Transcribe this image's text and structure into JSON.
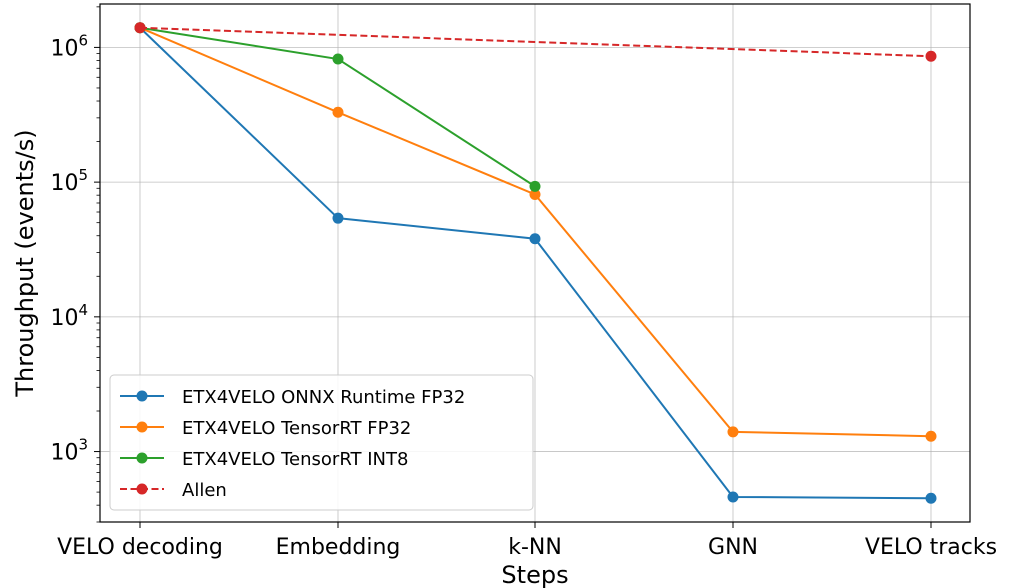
{
  "chart_data": {
    "type": "line",
    "categories": [
      "VELO decoding",
      "Embedding",
      "k-NN",
      "GNN",
      "VELO tracks"
    ],
    "xlabel": "Steps",
    "ylabel": "Throughput (events/s)",
    "yscale": "log",
    "ylim": [
      300,
      2100000
    ],
    "yticks": [
      {
        "value": 1000,
        "base": "10",
        "exp": "3"
      },
      {
        "value": 10000,
        "base": "10",
        "exp": "4"
      },
      {
        "value": 100000,
        "base": "10",
        "exp": "5"
      },
      {
        "value": 1000000,
        "base": "10",
        "exp": "6"
      }
    ],
    "grid": true,
    "legend_position": "lower-left",
    "series": [
      {
        "name": "ETX4VELO ONNX Runtime FP32",
        "color": "#1f77b4",
        "dash": "solid",
        "values": [
          1400000,
          54000,
          38000,
          460,
          450
        ]
      },
      {
        "name": "ETX4VELO TensorRT FP32",
        "color": "#ff7f0e",
        "dash": "solid",
        "values": [
          1400000,
          330000,
          81000,
          1400,
          1300
        ]
      },
      {
        "name": "ETX4VELO TensorRT INT8",
        "color": "#2ca02c",
        "dash": "solid",
        "values": [
          1400000,
          820000,
          93000,
          null,
          null
        ]
      },
      {
        "name": "Allen",
        "color": "#d62728",
        "dash": "dashed",
        "values": [
          1400000,
          null,
          null,
          null,
          860000
        ]
      }
    ]
  }
}
